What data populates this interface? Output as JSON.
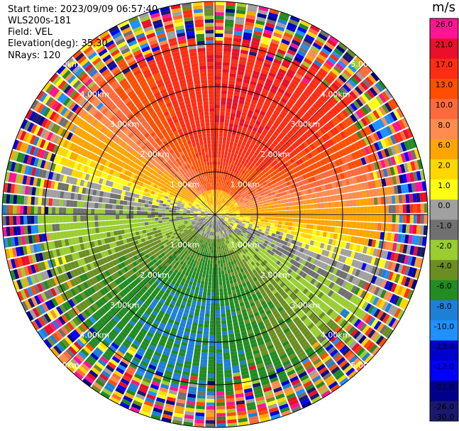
{
  "header": {
    "start_time": "Start time: 2023/09/09 06:57:40",
    "station": "WLS200s-181",
    "field": "Field: VEL",
    "elevation": "Elevation(deg): 35.30",
    "nrays": "NRays: 120"
  },
  "colorbar": {
    "unit": "m/s",
    "ticks": [
      "26.0",
      "21.0",
      "17.0",
      "13.0",
      "10.0",
      "8.0",
      "6.0",
      "2.0",
      "1.0",
      "0.0",
      "-1.0",
      "-2.0",
      "-4.0",
      "-6.0",
      "-8.0",
      "-10.0",
      "-13.0",
      "-17.0",
      "-21.0",
      "-26.0",
      "-30.0"
    ],
    "colors": [
      "#ff1493",
      "#e8102a",
      "#ff2d14",
      "#ff4e00",
      "#ff6a3d",
      "#ff8c4f",
      "#ffa500",
      "#ffd700",
      "#ffff14",
      "#a0a0a0",
      "#707070",
      "#9acd32",
      "#6b8e23",
      "#228b22",
      "#1e7fd6",
      "#1e90ff",
      "#0000cd",
      "#0000ff",
      "#00008b",
      "#191970"
    ]
  },
  "chart_data": {
    "type": "heatmap",
    "projection": "ppi",
    "field": "VEL",
    "units": "m/s",
    "nrays": 120,
    "elevation_deg": 35.3,
    "max_range_km": 5.0,
    "range_ring_labels": [
      "1.00km",
      "2.00km",
      "3.00km",
      "4.00km",
      "5.00km"
    ],
    "range_rings_km": [
      1,
      2,
      3,
      4,
      5
    ],
    "velocity_pattern": {
      "north_max_ms": 17.0,
      "south_min_ms": -8.0,
      "noise_beyond_km": 4.2
    }
  }
}
